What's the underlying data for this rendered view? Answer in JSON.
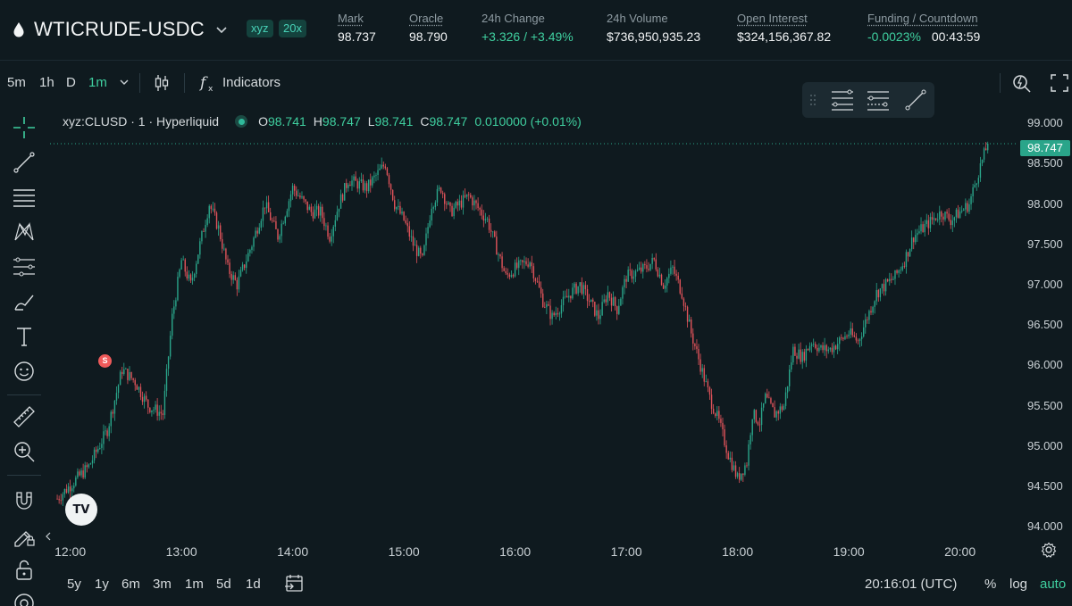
{
  "colors": {
    "background": "#0f1a1f",
    "accent": "#3fcf9f",
    "candle_up": "#2aa58a",
    "candle_down": "#e0535a",
    "price_tag": "#2aa58a"
  },
  "header": {
    "pair_icon": "droplet-icon",
    "pair_name": "WTICRUDE-USDC",
    "badge_dex": "xyz",
    "badge_leverage": "20x",
    "stats": {
      "mark": {
        "label": "Mark",
        "value": "98.737"
      },
      "oracle": {
        "label": "Oracle",
        "value": "98.790"
      },
      "change": {
        "label": "24h Change",
        "value": "+3.326 / +3.49%"
      },
      "volume": {
        "label": "24h Volume",
        "value": "$736,950,935.23"
      },
      "open_interest": {
        "label": "Open Interest",
        "value": "$324,156,367.82"
      },
      "funding": {
        "label": "Funding / Countdown",
        "rate": "-0.0023%",
        "countdown": "00:43:59"
      }
    }
  },
  "toolbar": {
    "intervals": [
      "5m",
      "1h",
      "D",
      "1m"
    ],
    "selected_interval": "1m",
    "indicators_label": "Indicators",
    "icons": [
      "chevron-down-icon",
      "candles-icon",
      "function-icon",
      "quick-search-icon",
      "fullscreen-icon"
    ]
  },
  "left_tools": [
    "crosshair-icon",
    "trend-line-icon",
    "fib-icon",
    "pattern-icon",
    "projection-icon",
    "brush-icon",
    "text-icon",
    "emoji-icon",
    "ruler-icon",
    "zoom-in-icon",
    "magnet-icon",
    "lock-drawing-icon",
    "lock-icon",
    "eye-icon"
  ],
  "legend": {
    "symbol": "xyz:CLUSD · 1 · Hyperliquid",
    "o_label": "O",
    "o": "98.741",
    "h_label": "H",
    "h": "98.747",
    "l_label": "L",
    "l": "98.741",
    "c_label": "C",
    "c": "98.747",
    "change": "0.010000 (+0.01%)"
  },
  "price_tag": "98.747",
  "signal_badge": "S",
  "tv_logo": "TV",
  "chart_data": {
    "type": "candlestick",
    "ylim": [
      93.85,
      99.2
    ],
    "y_ticks": [
      "99.000",
      "98.500",
      "98.000",
      "97.500",
      "97.000",
      "96.500",
      "96.000",
      "95.500",
      "95.000",
      "94.500",
      "94.000"
    ],
    "x_ticks": [
      "12:00",
      "13:00",
      "14:00",
      "15:00",
      "16:00",
      "17:00",
      "18:00",
      "19:00",
      "20:00"
    ],
    "last_price": 98.747,
    "path_close": [
      [
        "11:53",
        94.35
      ],
      [
        "12:10",
        94.75
      ],
      [
        "12:20",
        95.2
      ],
      [
        "12:28",
        95.95
      ],
      [
        "12:35",
        95.8
      ],
      [
        "12:42",
        95.5
      ],
      [
        "12:50",
        95.4
      ],
      [
        "12:55",
        96.6
      ],
      [
        "13:00",
        97.3
      ],
      [
        "13:05",
        97.0
      ],
      [
        "13:10",
        97.5
      ],
      [
        "13:15",
        98.0
      ],
      [
        "13:20",
        97.7
      ],
      [
        "13:25",
        97.2
      ],
      [
        "13:30",
        97.0
      ],
      [
        "13:38",
        97.5
      ],
      [
        "13:45",
        98.0
      ],
      [
        "13:52",
        97.6
      ],
      [
        "14:00",
        98.2
      ],
      [
        "14:10",
        97.9
      ],
      [
        "14:15",
        97.9
      ],
      [
        "14:20",
        97.6
      ],
      [
        "14:25",
        98.0
      ],
      [
        "14:30",
        98.3
      ],
      [
        "14:40",
        98.2
      ],
      [
        "14:50",
        98.5
      ],
      [
        "14:55",
        98.0
      ],
      [
        "15:00",
        97.8
      ],
      [
        "15:05",
        97.5
      ],
      [
        "15:10",
        97.3
      ],
      [
        "15:15",
        98.0
      ],
      [
        "15:20",
        98.2
      ],
      [
        "15:25",
        97.9
      ],
      [
        "15:35",
        98.1
      ],
      [
        "15:45",
        97.8
      ],
      [
        "15:55",
        97.1
      ],
      [
        "16:00",
        97.2
      ],
      [
        "16:08",
        97.3
      ],
      [
        "16:15",
        96.8
      ],
      [
        "16:20",
        96.6
      ],
      [
        "16:30",
        96.9
      ],
      [
        "16:35",
        97.0
      ],
      [
        "16:40",
        96.8
      ],
      [
        "16:45",
        96.6
      ],
      [
        "16:50",
        96.9
      ],
      [
        "16:55",
        96.7
      ],
      [
        "17:00",
        97.1
      ],
      [
        "17:10",
        97.2
      ],
      [
        "17:15",
        97.3
      ],
      [
        "17:20",
        97.0
      ],
      [
        "17:25",
        97.2
      ],
      [
        "17:30",
        96.9
      ],
      [
        "17:35",
        96.4
      ],
      [
        "17:40",
        96.0
      ],
      [
        "17:45",
        95.6
      ],
      [
        "17:50",
        95.3
      ],
      [
        "17:55",
        94.9
      ],
      [
        "18:00",
        94.6
      ],
      [
        "18:05",
        94.8
      ],
      [
        "18:08",
        95.4
      ],
      [
        "18:12",
        95.3
      ],
      [
        "18:15",
        95.6
      ],
      [
        "18:20",
        95.4
      ],
      [
        "18:25",
        95.5
      ],
      [
        "18:30",
        96.2
      ],
      [
        "18:35",
        96.1
      ],
      [
        "18:40",
        96.3
      ],
      [
        "18:45",
        96.2
      ],
      [
        "18:50",
        96.2
      ],
      [
        "18:55",
        96.3
      ],
      [
        "19:00",
        96.4
      ],
      [
        "19:05",
        96.3
      ],
      [
        "19:10",
        96.6
      ],
      [
        "19:15",
        96.9
      ],
      [
        "19:20",
        97.0
      ],
      [
        "19:25",
        97.1
      ],
      [
        "19:30",
        97.3
      ],
      [
        "19:35",
        97.6
      ],
      [
        "19:40",
        97.7
      ],
      [
        "19:45",
        97.8
      ],
      [
        "19:50",
        97.9
      ],
      [
        "19:55",
        97.8
      ],
      [
        "20:00",
        97.9
      ],
      [
        "20:05",
        98.0
      ],
      [
        "20:10",
        98.4
      ],
      [
        "20:15",
        98.747
      ]
    ]
  },
  "bottom": {
    "ranges": [
      "5y",
      "1y",
      "6m",
      "3m",
      "1m",
      "5d",
      "1d"
    ],
    "time": "20:16:01 (UTC)",
    "percent": "%",
    "log": "log",
    "auto": "auto"
  }
}
